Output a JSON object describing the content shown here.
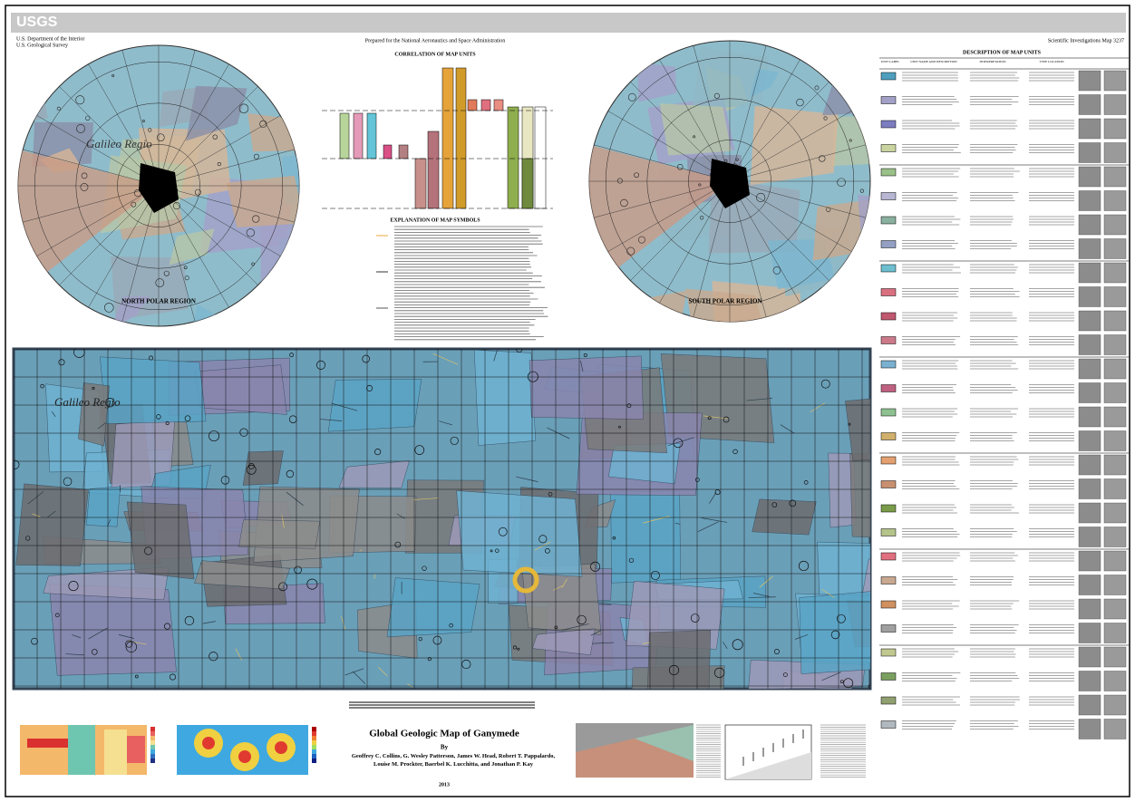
{
  "header": {
    "logo": "USGS",
    "agency": "U.S. Department of the Interior",
    "survey": "U.S. Geological Survey",
    "prepared_for": "Prepared for the National Aeronautics and Space Administration",
    "series": "Scientific Investigations Map 3237"
  },
  "polar_maps": [
    {
      "label": "NORTH POLAR REGION",
      "place": "Galileo Regio"
    },
    {
      "label": "SOUTH POLAR REGION"
    }
  ],
  "correlation": {
    "title": "CORRELATION OF MAP UNITS"
  },
  "explanation": {
    "title": "EXPLANATION OF MAP SYMBOLS"
  },
  "description": {
    "title": "DESCRIPTION OF MAP UNITS",
    "columns": [
      "UNIT LABEL",
      "UNIT NAME AND DESCRIPTION",
      "INTERPRETATION",
      "TYPE LOCATION"
    ]
  },
  "main_map": {
    "place": "Galileo Regio"
  },
  "title_block": {
    "title": "Global Geologic Map of Ganymede",
    "by": "By",
    "authors": "Geoffrey C. Collins, G. Wesley Patterson, James W. Head, Robert T. Pappalardo, Louise M. Prockter, Baerbel K. Lucchitta, and Jonathan P. Kay",
    "year": "2013"
  }
}
